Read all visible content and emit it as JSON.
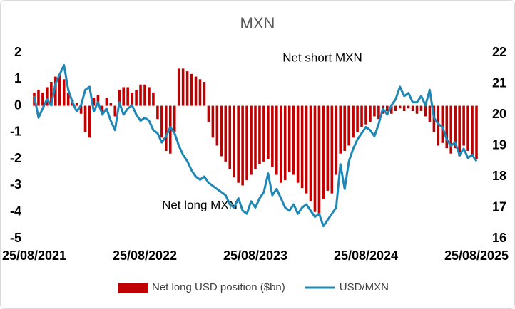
{
  "chart_data": {
    "type": "bar",
    "title": "MXN",
    "annotations": [
      "Net short MXN",
      "Net long MXN"
    ],
    "categories": [
      "25/08/2021",
      null,
      null,
      null,
      null,
      null,
      null,
      null,
      null,
      null,
      null,
      null,
      null,
      null,
      null,
      null,
      null,
      null,
      null,
      null,
      null,
      null,
      null,
      null,
      null,
      null,
      "25/08/2022",
      null,
      null,
      null,
      null,
      null,
      null,
      null,
      null,
      null,
      null,
      null,
      null,
      null,
      null,
      null,
      null,
      null,
      null,
      null,
      null,
      null,
      null,
      null,
      null,
      null,
      "25/08/2023",
      null,
      null,
      null,
      null,
      null,
      null,
      null,
      null,
      null,
      null,
      null,
      null,
      null,
      null,
      null,
      null,
      null,
      null,
      null,
      null,
      null,
      null,
      null,
      null,
      null,
      "25/08/2024",
      null,
      null,
      null,
      null,
      null,
      null,
      null,
      null,
      null,
      null,
      null,
      null,
      null,
      null,
      null,
      null,
      null,
      null,
      null,
      null,
      null,
      null,
      null,
      null,
      null,
      "25/08/2025"
    ],
    "series": [
      {
        "name": "Net long USD position ($bn)",
        "type": "bar",
        "color": "#c00000",
        "values": [
          0.5,
          0.6,
          0.5,
          0.7,
          0.9,
          1.1,
          1.2,
          1.0,
          0.5,
          0.2,
          0.1,
          -0.3,
          -1.0,
          -1.2,
          0.3,
          0.4,
          -0.3,
          0.3,
          0.1,
          -0.4,
          0.6,
          0.7,
          0.7,
          0.5,
          0.6,
          0.8,
          0.8,
          0.7,
          0.5,
          -0.5,
          -1.2,
          -1.7,
          -1.8,
          -1.0,
          1.4,
          1.4,
          1.3,
          1.2,
          1.1,
          1.0,
          0.9,
          -0.6,
          -1.2,
          -1.5,
          -1.9,
          -2.1,
          -2.4,
          -2.7,
          -2.9,
          -3.0,
          -2.8,
          -2.6,
          -2.4,
          -2.2,
          -2.1,
          -2.0,
          -2.3,
          -2.6,
          -2.9,
          -2.8,
          -2.5,
          -2.6,
          -2.9,
          -3.1,
          -3.3,
          -3.6,
          -4.0,
          -4.1,
          -3.5,
          -3.2,
          -3.3,
          -2.6,
          -1.8,
          -1.7,
          -1.5,
          -1.2,
          -1.0,
          -0.8,
          -0.7,
          -0.6,
          -0.4,
          -0.5,
          -0.3,
          -0.2,
          -0.3,
          -0.2,
          -0.1,
          -0.2,
          -0.1,
          -0.2,
          -0.3,
          -0.2,
          -0.4,
          -0.6,
          -1.0,
          -1.5,
          -1.4,
          -1.6,
          -1.8,
          -1.6,
          -1.9,
          -1.5,
          -1.7,
          -1.9,
          -2.0
        ]
      },
      {
        "name": "USD/MXN",
        "type": "line",
        "axis": "y2",
        "color": "#1f87b5",
        "values": [
          20.6,
          19.9,
          20.2,
          20.5,
          20.3,
          21.0,
          21.3,
          21.6,
          20.8,
          20.4,
          20.1,
          20.3,
          20.8,
          20.9,
          20.1,
          20.4,
          20.0,
          20.2,
          19.8,
          19.5,
          20.4,
          20.0,
          20.2,
          20.3,
          20.0,
          19.8,
          19.9,
          19.8,
          19.5,
          19.4,
          19.1,
          19.3,
          19.6,
          19.4,
          19.0,
          18.7,
          18.5,
          18.2,
          18.0,
          17.9,
          18.0,
          17.8,
          17.7,
          17.6,
          17.5,
          17.4,
          17.1,
          17.0,
          17.3,
          16.9,
          16.8,
          17.2,
          17.0,
          17.3,
          17.5,
          18.1,
          17.4,
          17.6,
          17.3,
          17.0,
          16.9,
          17.1,
          16.8,
          17.0,
          17.1,
          16.9,
          16.7,
          16.8,
          16.4,
          16.6,
          16.8,
          17.0,
          18.4,
          17.6,
          18.5,
          18.9,
          19.2,
          19.4,
          19.6,
          19.5,
          19.3,
          19.7,
          20.2,
          20.0,
          20.3,
          20.5,
          20.9,
          20.6,
          20.7,
          20.4,
          20.4,
          20.6,
          20.3,
          20.8,
          19.9,
          19.7,
          19.6,
          19.2,
          19.0,
          19.1,
          18.7,
          18.9,
          18.6,
          18.7,
          18.5
        ]
      }
    ],
    "ylim": [
      -5,
      2
    ],
    "yticks": [
      -5,
      -4,
      -3,
      -2,
      -1,
      0,
      1,
      2
    ],
    "y2lim": [
      16,
      22
    ],
    "y2ticks": [
      16,
      17,
      18,
      19,
      20,
      21,
      22
    ],
    "grid": false,
    "legend": "bottom"
  }
}
